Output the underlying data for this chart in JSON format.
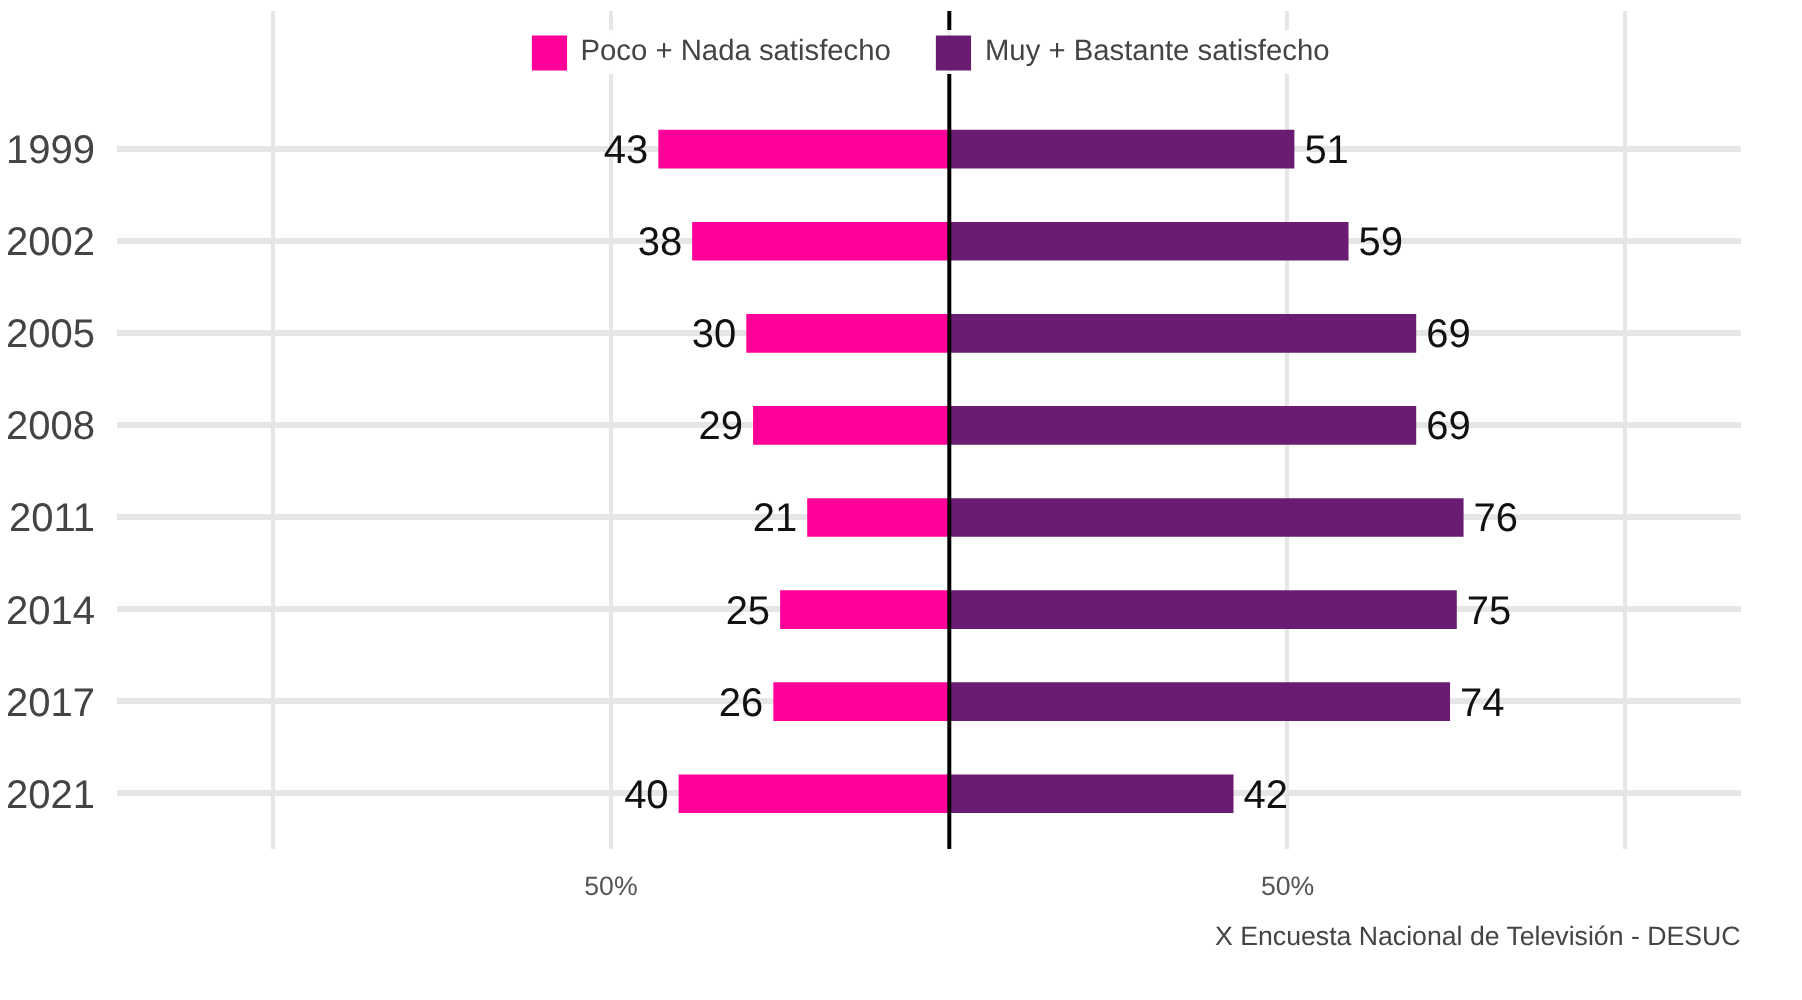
{
  "chart_data": {
    "type": "bar",
    "orientation": "horizontal",
    "categories": [
      "1999",
      "2002",
      "2005",
      "2008",
      "2011",
      "2014",
      "2017",
      "2021"
    ],
    "series": [
      {
        "name": "Poco + Nada satisfecho",
        "color": "#ff0099",
        "values": [
          43,
          38,
          30,
          29,
          21,
          25,
          26,
          40
        ],
        "base": [
          -43,
          -38,
          -30,
          -29,
          -21,
          -25,
          -26,
          -40
        ]
      },
      {
        "name": "Muy + Bastante satisfecho",
        "color": "#6a1b72",
        "values": [
          51,
          59,
          69,
          69,
          76,
          75,
          74,
          42
        ]
      }
    ],
    "data_labels": true,
    "xlim": [
      -123,
      117
    ],
    "xticks": [
      {
        "value": -100,
        "label": null
      },
      {
        "value": -50,
        "label": "50%"
      },
      {
        "value": 50,
        "label": "50%"
      },
      {
        "value": 100,
        "label": null
      }
    ],
    "ref_lines": [
      {
        "axis": "x",
        "value": 0,
        "label": null,
        "color": "#000000"
      }
    ],
    "grid": true,
    "legend": "top",
    "annotations": [
      "X Encuesta Nacional de Televisión - DESUC"
    ]
  }
}
